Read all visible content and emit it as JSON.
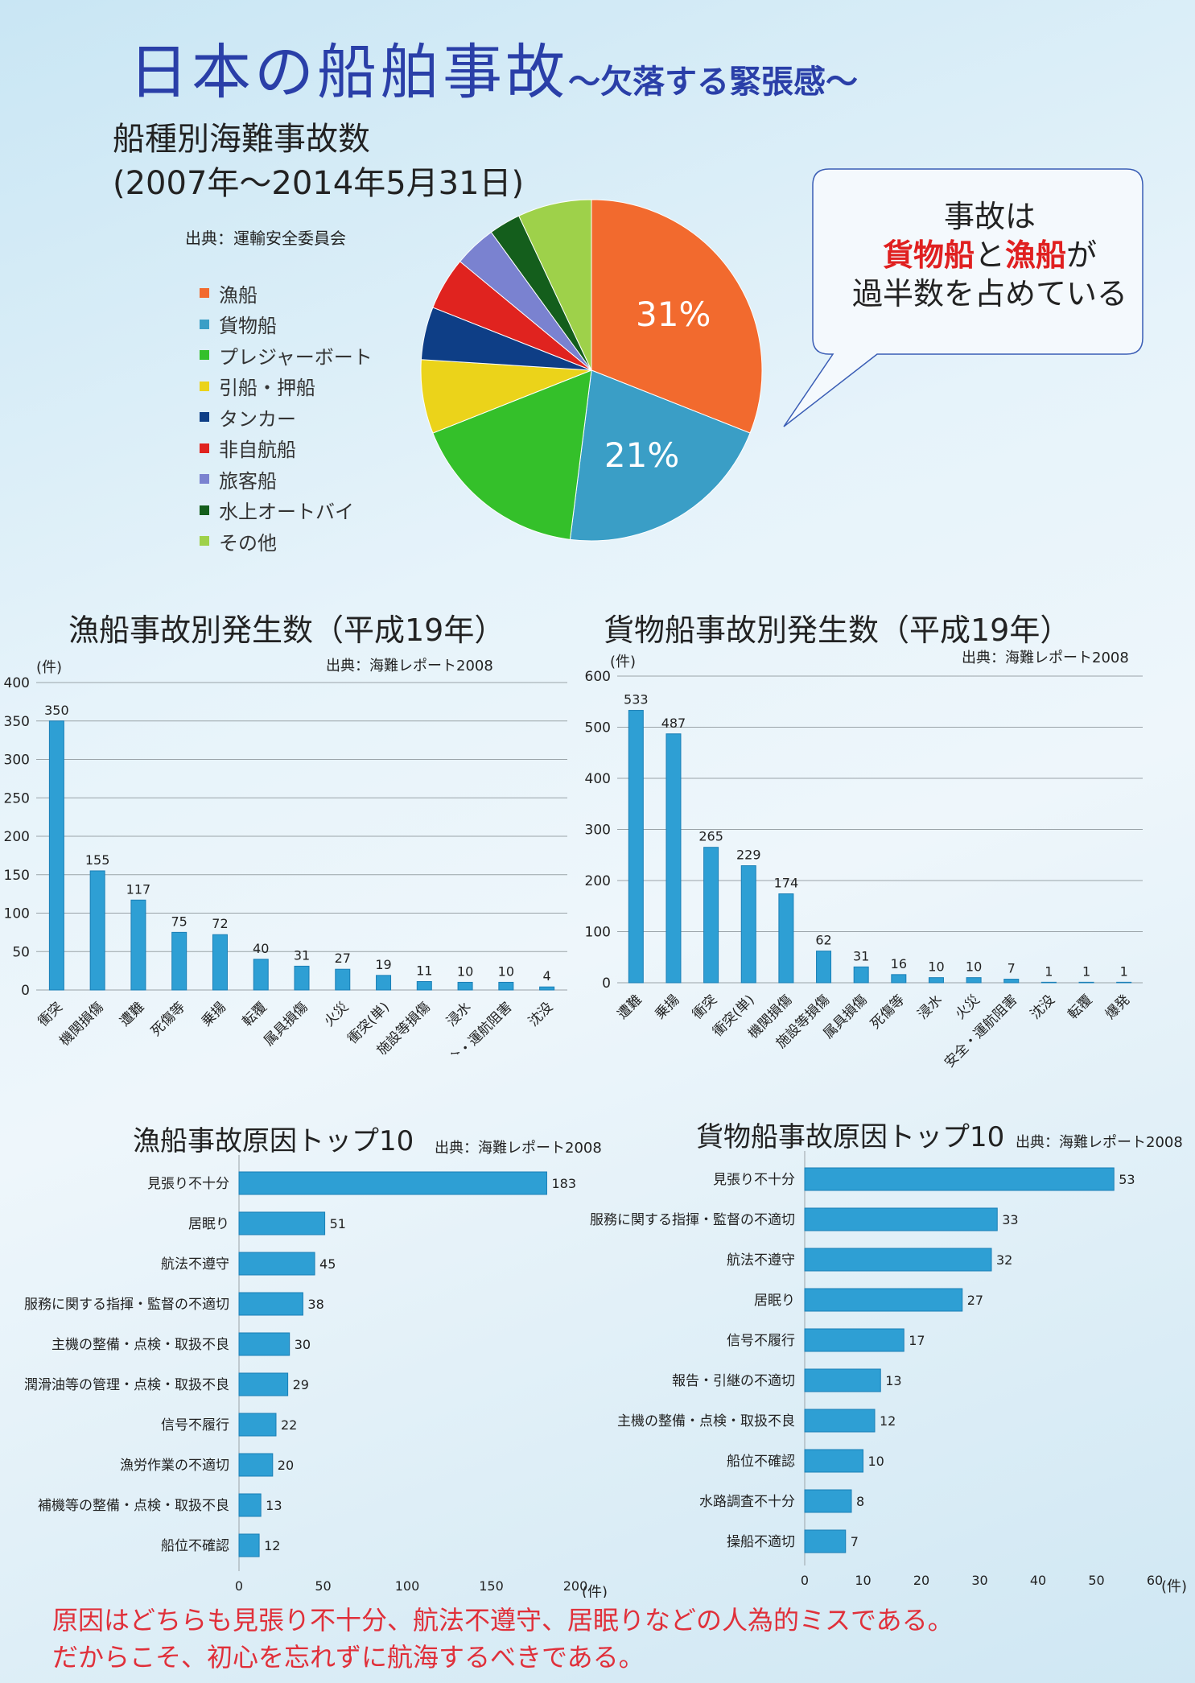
{
  "header": {
    "title_main": "日本の船舶事故",
    "title_sub": "～欠落する緊張感～"
  },
  "pie_section": {
    "title_line1": "船種別海難事故数",
    "title_line2": "(2007年～2014年5月31日)",
    "source": "出典：運輸安全委員会"
  },
  "callout": {
    "line1": "事故は",
    "line2_red1": "貨物船",
    "line2_mid": "と",
    "line2_red2": "漁船",
    "line2_end": "が",
    "line3": "過半数を占めている"
  },
  "fishing_accidents": {
    "title": "漁船事故別発生数（平成19年）",
    "source": "出典：海難レポート2008",
    "unit": "(件)"
  },
  "cargo_accidents": {
    "title": "貨物船事故別発生数（平成19年）",
    "source": "出典：海難レポート2008",
    "unit": "(件)"
  },
  "fishing_causes": {
    "title": "漁船事故原因トップ10",
    "source": "出典：海難レポート2008",
    "unit": "(件)"
  },
  "cargo_causes": {
    "title": "貨物船事故原因トップ10",
    "source": "出典：海難レポート2008",
    "unit": "(件)"
  },
  "footer": {
    "line1": "原因はどちらも見張り不十分、航法不遵守、居眠りなどの人為的ミスである。",
    "line2": "だからこそ、初心を忘れずに航海するべきである。"
  },
  "colors": {
    "bar": "#2e9fd4",
    "bar_dark": "#1a7fb6",
    "title_blue": "#2a3fa8",
    "red": "#e02020"
  },
  "chart_data": [
    {
      "id": "ship_type_pie",
      "type": "pie",
      "title": "船種別海難事故数",
      "categories": [
        "漁船",
        "貨物船",
        "プレジャーボート",
        "引船・押船",
        "タンカー",
        "非自航船",
        "旅客船",
        "水上オートバイ",
        "その他"
      ],
      "values": [
        31,
        21,
        17,
        7,
        5,
        5,
        4,
        3,
        7
      ],
      "labels": [
        "31%",
        "21%",
        "",
        "",
        "",
        "",
        "",
        "",
        ""
      ],
      "colors": [
        "#f26a2e",
        "#3a9ec6",
        "#34c02a",
        "#ebd31a",
        "#0e3e86",
        "#e0231f",
        "#7a82d0",
        "#145e1c",
        "#9ed14a"
      ],
      "legend": "left"
    },
    {
      "id": "fishing_accidents",
      "type": "bar",
      "title": "漁船事故別発生数（平成19年）",
      "ylabel": "(件)",
      "ylim": [
        0,
        400
      ],
      "yticks": [
        0,
        50,
        100,
        150,
        200,
        250,
        300,
        350,
        400
      ],
      "categories": [
        "衝突",
        "機関損傷",
        "遭難",
        "死傷等",
        "乗揚",
        "転覆",
        "属具損傷",
        "火災",
        "衝突(単)",
        "施設等損傷",
        "浸水",
        "安全・運航阻害",
        "沈没"
      ],
      "values": [
        350,
        155,
        117,
        75,
        72,
        40,
        31,
        27,
        19,
        11,
        10,
        10,
        4
      ],
      "grid": true
    },
    {
      "id": "cargo_accidents",
      "type": "bar",
      "title": "貨物船事故別発生数（平成19年）",
      "ylabel": "(件)",
      "ylim": [
        0,
        600
      ],
      "yticks": [
        0,
        100,
        200,
        300,
        400,
        500,
        600
      ],
      "categories": [
        "遭難",
        "乗揚",
        "衝突",
        "衝突(単)",
        "機関損傷",
        "施設等損傷",
        "属具損傷",
        "死傷等",
        "浸水",
        "火災",
        "安全・運航阻害",
        "沈没",
        "転覆",
        "爆発"
      ],
      "values": [
        533,
        487,
        265,
        229,
        174,
        62,
        31,
        16,
        10,
        10,
        7,
        1,
        1,
        1
      ],
      "grid": true
    },
    {
      "id": "fishing_causes",
      "type": "bar",
      "orientation": "horizontal",
      "title": "漁船事故原因トップ10",
      "xlabel": "(件)",
      "xlim": [
        0,
        200
      ],
      "xticks": [
        0,
        50,
        100,
        150,
        200
      ],
      "categories": [
        "見張り不十分",
        "居眠り",
        "航法不遵守",
        "服務に関する指揮・監督の不適切",
        "主機の整備・点検・取扱不良",
        "潤滑油等の管理・点検・取扱不良",
        "信号不履行",
        "漁労作業の不適切",
        "補機等の整備・点検・取扱不良",
        "船位不確認"
      ],
      "values": [
        183,
        51,
        45,
        38,
        30,
        29,
        22,
        20,
        13,
        12
      ]
    },
    {
      "id": "cargo_causes",
      "type": "bar",
      "orientation": "horizontal",
      "title": "貨物船事故原因トップ10",
      "xlabel": "(件)",
      "xlim": [
        0,
        60
      ],
      "xticks": [
        0,
        10,
        20,
        30,
        40,
        50,
        60
      ],
      "categories": [
        "見張り不十分",
        "服務に関する指揮・監督の不適切",
        "航法不遵守",
        "居眠り",
        "信号不履行",
        "報告・引継の不適切",
        "主機の整備・点検・取扱不良",
        "船位不確認",
        "水路調査不十分",
        "操船不適切"
      ],
      "values": [
        53,
        33,
        32,
        27,
        17,
        13,
        12,
        10,
        8,
        7
      ]
    }
  ]
}
